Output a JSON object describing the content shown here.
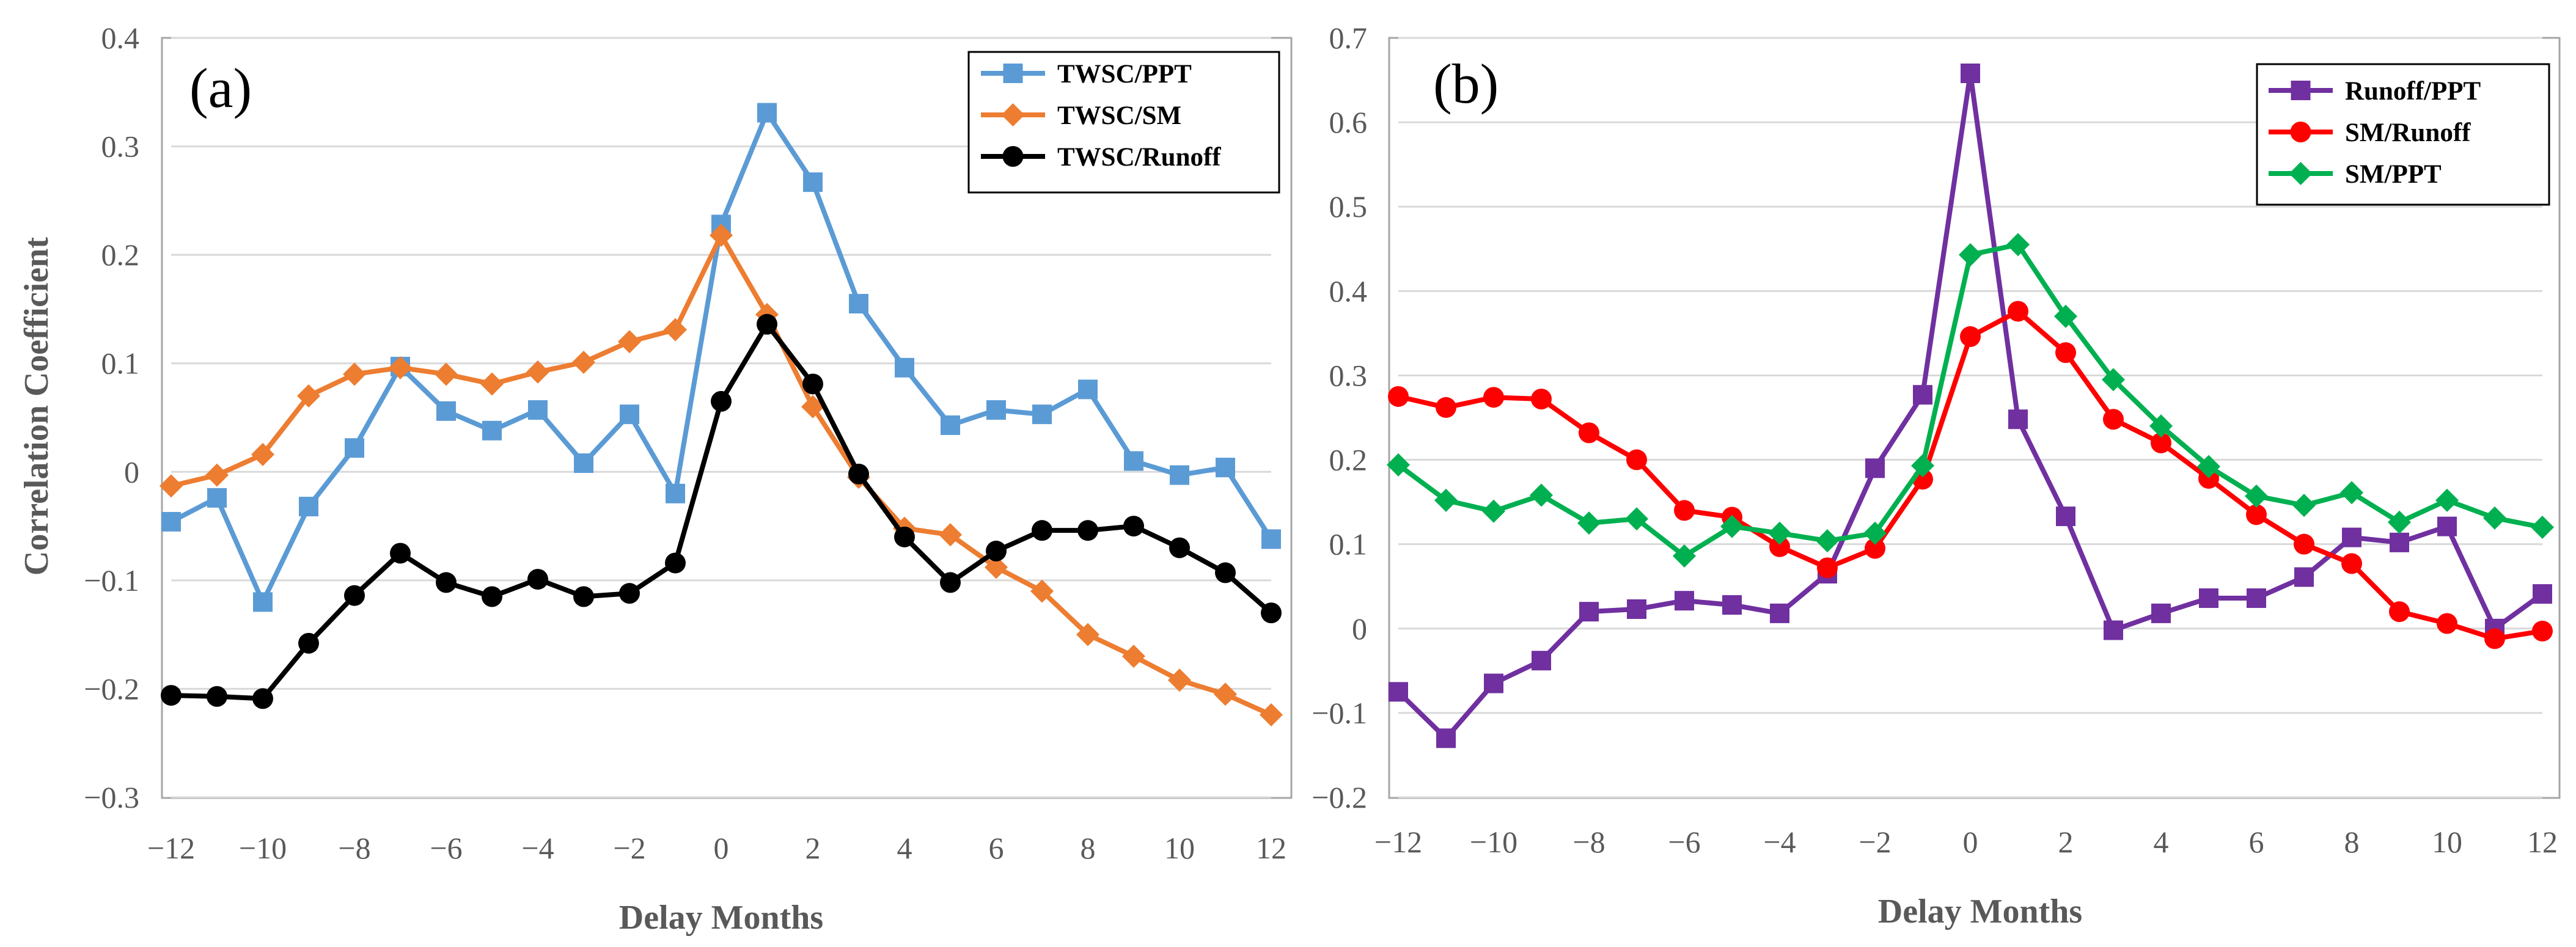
{
  "chart_data": [
    {
      "type": "line",
      "panel_label": "(a)",
      "ylabel": "Correlation Coefficient",
      "xlabel": "Delay Months",
      "xlim": [
        -12,
        12
      ],
      "ylim": [
        -0.3,
        0.4
      ],
      "grid": true,
      "legend_position": "top-right",
      "x_ticks": [
        -12,
        -10,
        -8,
        -6,
        -4,
        -2,
        0,
        2,
        4,
        6,
        8,
        10,
        12
      ],
      "x_tick_labels": [
        "−12",
        "−10",
        "−8",
        "−6",
        "−4",
        "−2",
        "0",
        "2",
        "4",
        "6",
        "8",
        "10",
        "12"
      ],
      "y_ticks": [
        -0.3,
        -0.2,
        -0.1,
        0,
        0.1,
        0.2,
        0.3,
        0.4
      ],
      "y_tick_labels": [
        "−0.3",
        "−0.2",
        "−0.1",
        "0",
        "0.1",
        "0.2",
        "0.3",
        "0.4"
      ],
      "x": [
        -12,
        -11,
        -10,
        -9,
        -8,
        -7,
        -6,
        -5,
        -4,
        -3,
        -2,
        -1,
        0,
        1,
        2,
        3,
        4,
        5,
        6,
        7,
        8,
        9,
        10,
        11,
        12
      ],
      "series": [
        {
          "name": "TWSC/PPT",
          "color": "#5B9BD5",
          "marker": "square",
          "values": [
            -0.046,
            -0.024,
            -0.12,
            -0.032,
            0.022,
            0.097,
            0.056,
            0.038,
            0.057,
            0.008,
            0.053,
            -0.02,
            0.228,
            0.331,
            0.267,
            0.155,
            0.096,
            0.043,
            0.057,
            0.053,
            0.076,
            0.01,
            -0.003,
            0.004,
            -0.062
          ]
        },
        {
          "name": "TWSC/SM",
          "color": "#ED7D31",
          "marker": "diamond",
          "values": [
            -0.013,
            -0.003,
            0.016,
            0.07,
            0.09,
            0.096,
            0.09,
            0.081,
            0.092,
            0.101,
            0.12,
            0.131,
            0.218,
            0.145,
            0.06,
            -0.005,
            -0.052,
            -0.058,
            -0.088,
            -0.11,
            -0.15,
            -0.17,
            -0.192,
            -0.205,
            -0.224
          ]
        },
        {
          "name": "TWSC/Runoff",
          "color": "#000000",
          "marker": "circle",
          "values": [
            -0.206,
            -0.207,
            -0.209,
            -0.158,
            -0.114,
            -0.075,
            -0.102,
            -0.115,
            -0.099,
            -0.115,
            -0.112,
            -0.084,
            0.065,
            0.136,
            0.081,
            -0.002,
            -0.06,
            -0.102,
            -0.073,
            -0.054,
            -0.054,
            -0.05,
            -0.07,
            -0.093,
            -0.13
          ]
        }
      ]
    },
    {
      "type": "line",
      "panel_label": "(b)",
      "ylabel": "",
      "xlabel": "Delay Months",
      "xlim": [
        -12,
        12
      ],
      "ylim": [
        -0.2,
        0.7
      ],
      "grid": true,
      "legend_position": "top-right",
      "x_ticks": [
        -12,
        -10,
        -8,
        -6,
        -4,
        -2,
        0,
        2,
        4,
        6,
        8,
        10,
        12
      ],
      "x_tick_labels": [
        "−12",
        "−10",
        "−8",
        "−6",
        "−4",
        "−2",
        "0",
        "2",
        "4",
        "6",
        "8",
        "10",
        "12"
      ],
      "y_ticks": [
        -0.2,
        -0.1,
        0,
        0.1,
        0.2,
        0.3,
        0.4,
        0.5,
        0.6,
        0.7
      ],
      "y_tick_labels": [
        "−0.2",
        "−0.1",
        "0",
        "0.1",
        "0.2",
        "0.3",
        "0.4",
        "0.5",
        "0.6",
        "0.7"
      ],
      "x": [
        -12,
        -11,
        -10,
        -9,
        -8,
        -7,
        -6,
        -5,
        -4,
        -3,
        -2,
        -1,
        0,
        1,
        2,
        3,
        4,
        5,
        6,
        7,
        8,
        9,
        10,
        11,
        12
      ],
      "series": [
        {
          "name": "Runoff/PPT",
          "color": "#7030A0",
          "marker": "square",
          "values": [
            -0.075,
            -0.13,
            -0.065,
            -0.038,
            0.02,
            0.023,
            0.033,
            0.028,
            0.018,
            0.065,
            0.19,
            0.277,
            0.658,
            0.248,
            0.133,
            -0.002,
            0.018,
            0.036,
            0.036,
            0.061,
            0.108,
            0.102,
            0.121,
            0.0,
            0.041
          ]
        },
        {
          "name": "SM/Runoff",
          "color": "#FF0000",
          "marker": "circle",
          "values": [
            0.275,
            0.262,
            0.274,
            0.272,
            0.232,
            0.2,
            0.14,
            0.132,
            0.097,
            0.072,
            0.095,
            0.177,
            0.346,
            0.376,
            0.327,
            0.248,
            0.22,
            0.178,
            0.135,
            0.1,
            0.077,
            0.02,
            0.006,
            -0.012,
            -0.003
          ]
        },
        {
          "name": "SM/PPT",
          "color": "#00B050",
          "marker": "diamond",
          "values": [
            0.194,
            0.152,
            0.139,
            0.158,
            0.125,
            0.13,
            0.086,
            0.121,
            0.113,
            0.104,
            0.113,
            0.193,
            0.443,
            0.455,
            0.37,
            0.295,
            0.24,
            0.192,
            0.157,
            0.146,
            0.161,
            0.126,
            0.152,
            0.131,
            0.12
          ]
        }
      ]
    }
  ]
}
